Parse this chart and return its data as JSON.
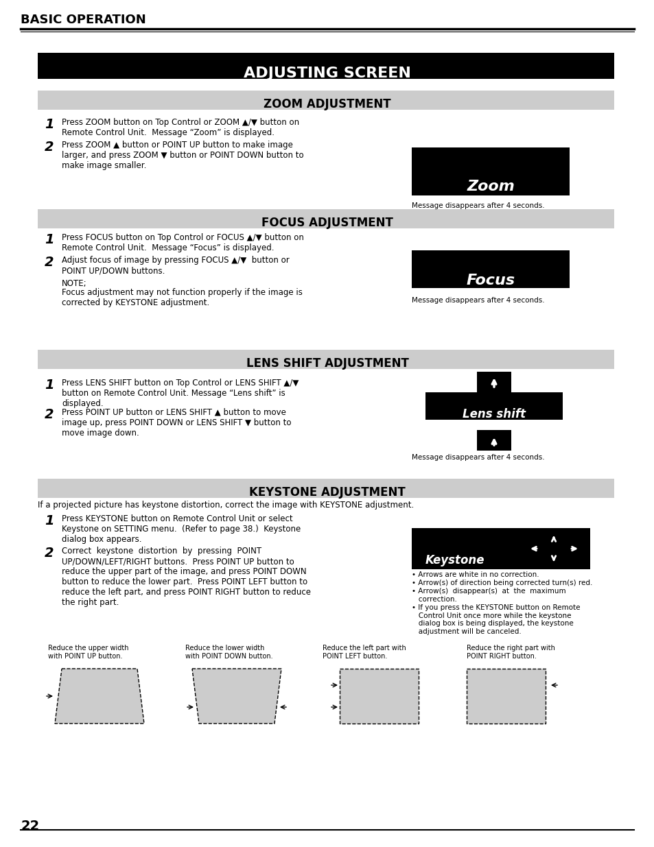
{
  "page_bg": "#ffffff",
  "header_text": "BASIC OPERATION",
  "page_number": "22",
  "main_title": "ADJUSTING SCREEN",
  "main_title_bg": "#000000",
  "main_title_color": "#ffffff",
  "section_bg": "#cccccc",
  "section_text_color": "#000000",
  "sections": [
    {
      "title": "ZOOM ADJUSTMENT",
      "steps": [
        {
          "num": "1",
          "text": "Press ZOOM button on Top Control or ZOOM ▲/▼ button on\nRemote Control Unit.  Message “Zoom” is displayed."
        },
        {
          "num": "2",
          "text": "Press ZOOM ▲ button or POINT UP button to make image\nlarger, and press ZOOM ▼ button or POINT DOWN button to\nmake image smaller."
        }
      ],
      "display_box": {
        "text": "Zoom",
        "bg": "#000000",
        "text_color": "#ffffff"
      },
      "message": "Message disappears after 4 seconds.",
      "note": null
    },
    {
      "title": "FOCUS ADJUSTMENT",
      "steps": [
        {
          "num": "1",
          "text": "Press FOCUS button on Top Control or FOCUS ▲/▼ button on\nRemote Control Unit.  Message “Focus” is displayed."
        },
        {
          "num": "2",
          "text": "Adjust focus of image by pressing FOCUS ▲/▼  button or\nPOINT UP/DOWN buttons."
        }
      ],
      "display_box": {
        "text": "Focus",
        "bg": "#000000",
        "text_color": "#ffffff"
      },
      "message": "Message disappears after 4 seconds.",
      "note": "NOTE;\nFocus adjustment may not function properly if the image is\ncorrected by KEYSTONE adjustment."
    },
    {
      "title": "LENS SHIFT ADJUSTMENT",
      "steps": [
        {
          "num": "1",
          "text": "Press LENS SHIFT button on Top Control or LENS SHIFT ▲/▼\nbutton on Remote Control Unit. Message “Lens shift” is\ndisplayed."
        },
        {
          "num": "2",
          "text": "Press POINT UP button or LENS SHIFT ▲ button to move\nimage up, press POINT DOWN or LENS SHIFT ▼ button to\nmove image down."
        }
      ],
      "display_box": {
        "text": "Lens shift",
        "bg": "#000000",
        "text_color": "#ffffff",
        "has_arrows": true
      },
      "message": "Message disappears after 4 seconds.",
      "note": null
    },
    {
      "title": "KEYSTONE ADJUSTMENT",
      "steps": [
        {
          "num": "1",
          "text": "Press KEYSTONE button on Remote Control Unit or select\nKeystone on SETTING menu.  (Refer to page 38.)  Keystone\ndialog box appears."
        },
        {
          "num": "2",
          "text": "Correct  keystone  distortion  by  pressing  POINT\nUP/DOWN/LEFT/RIGHT buttons.  Press POINT UP button to\nreduce the upper part of the image, and press POINT DOWN\nbutton to reduce the lower part.  Press POINT LEFT button to\nreduce the left part, and press POINT RIGHT button to reduce\nthe right part."
        }
      ],
      "display_box": {
        "text": "Keystone",
        "bg": "#000000",
        "text_color": "#ffffff",
        "has_lr_arrows": true
      },
      "message": null,
      "note": null,
      "bullet_notes": [
        "• Arrows are white in no correction.",
        "• Arrow(s) of direction being corrected turn(s) red.",
        "• Arrow(s)  disappear(s)  at  the  maximum\n   correction.",
        "• If you press the KEYSTONE button on Remote\n   Control Unit once more while the keystone\n   dialog box is being displayed, the keystone\n   adjustment will be canceled."
      ],
      "intro": "If a projected picture has keystone distortion, correct the image with KEYSTONE adjustment."
    }
  ],
  "keystone_diagrams": [
    {
      "label": "Reduce the upper width\nwith POINT UP button.",
      "type": "upper"
    },
    {
      "label": "Reduce the lower width\nwith POINT DOWN button.",
      "type": "lower"
    },
    {
      "label": "Reduce the left part with\nPOINT LEFT button.",
      "type": "left"
    },
    {
      "label": "Reduce the right part with\nPOINT RIGHT button.",
      "type": "right"
    }
  ]
}
